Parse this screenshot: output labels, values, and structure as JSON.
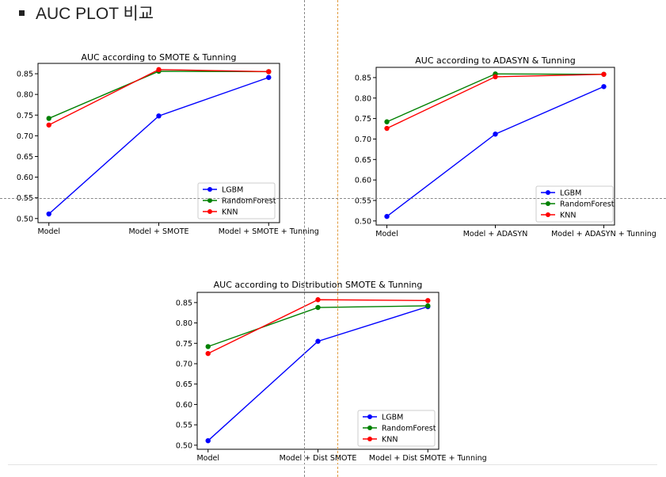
{
  "heading": {
    "text": "AUC PLOT 비교"
  },
  "chart_data": [
    {
      "type": "line",
      "title": "AUC according to SMOTE & Tunning",
      "categories": [
        "Model",
        "Model + SMOTE",
        "Model + SMOTE + Tunning"
      ],
      "series": [
        {
          "name": "LGBM",
          "color": "#0000ff",
          "values": [
            0.511,
            0.748,
            0.841
          ]
        },
        {
          "name": "RandomForest",
          "color": "#008000",
          "values": [
            0.742,
            0.856,
            0.855
          ]
        },
        {
          "name": "KNN",
          "color": "#ff0000",
          "values": [
            0.726,
            0.86,
            0.855
          ]
        }
      ],
      "ylim": [
        0.49,
        0.875
      ],
      "yticks": [
        "0.50",
        "0.55",
        "0.60",
        "0.65",
        "0.70",
        "0.75",
        "0.80",
        "0.85"
      ],
      "legend": "lower-right",
      "grid": false
    },
    {
      "type": "line",
      "title": "AUC according to ADASYN & Tunning",
      "categories": [
        "Model",
        "Model + ADASYN",
        "Model + ADASYN + Tunning"
      ],
      "series": [
        {
          "name": "LGBM",
          "color": "#0000ff",
          "values": [
            0.511,
            0.712,
            0.828
          ]
        },
        {
          "name": "RandomForest",
          "color": "#008000",
          "values": [
            0.742,
            0.859,
            0.858
          ]
        },
        {
          "name": "KNN",
          "color": "#ff0000",
          "values": [
            0.726,
            0.852,
            0.858
          ]
        }
      ],
      "ylim": [
        0.49,
        0.875
      ],
      "yticks": [
        "0.50",
        "0.55",
        "0.60",
        "0.65",
        "0.70",
        "0.75",
        "0.80",
        "0.85"
      ],
      "legend": "lower-right",
      "grid": false
    },
    {
      "type": "line",
      "title": "AUC according to Distribution SMOTE & Tunning",
      "categories": [
        "Model",
        "Model + Dist SMOTE",
        "Model + Dist SMOTE + Tunning"
      ],
      "series": [
        {
          "name": "LGBM",
          "color": "#0000ff",
          "values": [
            0.511,
            0.755,
            0.84
          ]
        },
        {
          "name": "RandomForest",
          "color": "#008000",
          "values": [
            0.742,
            0.838,
            0.842
          ]
        },
        {
          "name": "KNN",
          "color": "#ff0000",
          "values": [
            0.725,
            0.857,
            0.855
          ]
        }
      ],
      "ylim": [
        0.49,
        0.875
      ],
      "yticks": [
        "0.50",
        "0.55",
        "0.60",
        "0.65",
        "0.70",
        "0.75",
        "0.80",
        "0.85"
      ],
      "legend": "lower-right",
      "grid": false
    }
  ]
}
